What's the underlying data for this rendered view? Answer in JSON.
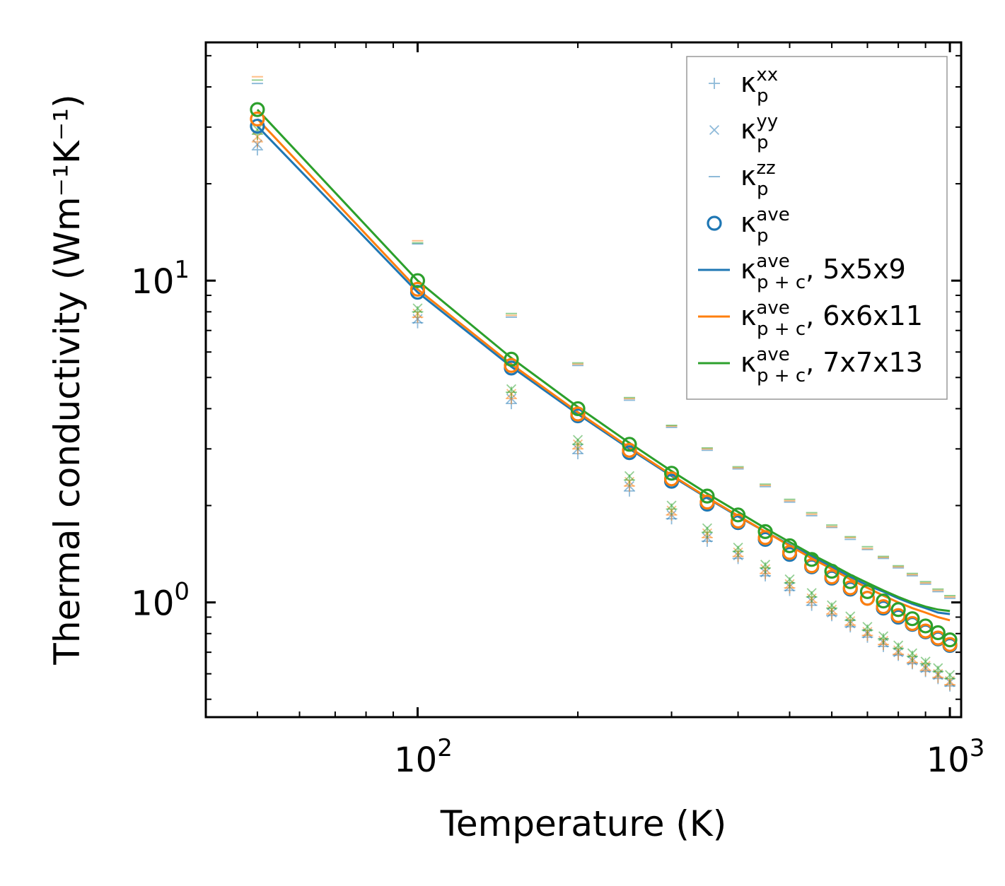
{
  "chart_data": {
    "type": "scatter",
    "title": "",
    "xlabel": "Temperature (K)",
    "ylabel": "Thermal conductivity (Wm⁻¹K⁻¹)",
    "xscale": "log",
    "yscale": "log",
    "xlim": [
      40,
      1050
    ],
    "ylim": [
      0.44,
      55
    ],
    "x_ticks": [
      {
        "base": "10",
        "exp": "2",
        "value": 100
      },
      {
        "base": "10",
        "exp": "3",
        "value": 1000
      }
    ],
    "y_ticks": [
      {
        "base": "10",
        "exp": "0",
        "value": 1
      },
      {
        "base": "10",
        "exp": "1",
        "value": 10
      }
    ],
    "legend_position": "top-right",
    "legend": [
      {
        "symbol": "plus",
        "color": "#1f77b4",
        "alpha": 0.5,
        "main": "κ",
        "sub": "p",
        "sup": "xx",
        "suffix": ""
      },
      {
        "symbol": "cross",
        "color": "#1f77b4",
        "alpha": 0.5,
        "main": "κ",
        "sub": "p",
        "sup": "yy",
        "suffix": ""
      },
      {
        "symbol": "hline",
        "color": "#1f77b4",
        "alpha": 0.5,
        "main": "κ",
        "sub": "p",
        "sup": "zz",
        "suffix": ""
      },
      {
        "symbol": "circle",
        "color": "#1f77b4",
        "alpha": 1,
        "main": "κ",
        "sub": "p",
        "sup": "ave",
        "suffix": ""
      },
      {
        "symbol": "line",
        "color": "#1f77b4",
        "alpha": 1,
        "main": "κ",
        "sub": "p + c",
        "sup": "ave",
        "suffix": ", 5x5x9"
      },
      {
        "symbol": "line",
        "color": "#ff7f0e",
        "alpha": 1,
        "main": "κ",
        "sub": "p + c",
        "sup": "ave",
        "suffix": ", 6x6x11"
      },
      {
        "symbol": "line",
        "color": "#2ca02c",
        "alpha": 1,
        "main": "κ",
        "sub": "p + c",
        "sup": "ave",
        "suffix": ", 7x7x13"
      }
    ],
    "x": [
      50,
      100,
      150,
      200,
      250,
      300,
      350,
      400,
      450,
      500,
      550,
      600,
      650,
      700,
      750,
      800,
      850,
      900,
      950,
      1000
    ],
    "series": [
      {
        "name": "5x5x9",
        "color": "#1f77b4",
        "kxx": [
          25.5,
          7.4,
          4.15,
          2.9,
          2.22,
          1.82,
          1.55,
          1.37,
          1.21,
          1.09,
          0.98,
          0.91,
          0.84,
          0.78,
          0.73,
          0.685,
          0.645,
          0.61,
          0.58,
          0.55
        ],
        "kyy": [
          26.5,
          7.6,
          4.3,
          3.0,
          2.3,
          1.87,
          1.59,
          1.4,
          1.24,
          1.12,
          1.01,
          0.93,
          0.86,
          0.8,
          0.75,
          0.7,
          0.66,
          0.625,
          0.595,
          0.565
        ],
        "kzz": [
          41,
          13.0,
          7.7,
          5.45,
          4.25,
          3.5,
          2.97,
          2.6,
          2.29,
          2.05,
          1.86,
          1.71,
          1.57,
          1.46,
          1.37,
          1.28,
          1.21,
          1.14,
          1.08,
          1.03
        ],
        "kave": [
          30.2,
          9.2,
          5.35,
          3.8,
          2.92,
          2.38,
          2.02,
          1.77,
          1.57,
          1.41,
          1.29,
          1.19,
          1.1,
          1.03,
          0.96,
          0.9,
          0.855,
          0.81,
          0.77,
          0.735
        ],
        "kpc": [
          30.2,
          9.2,
          5.4,
          3.85,
          3.0,
          2.47,
          2.11,
          1.85,
          1.66,
          1.51,
          1.39,
          1.29,
          1.2,
          1.13,
          1.08,
          1.03,
          0.99,
          0.96,
          0.93,
          0.92
        ]
      },
      {
        "name": "6x6x11",
        "color": "#ff7f0e",
        "kxx": [
          27.0,
          7.7,
          4.3,
          3.0,
          2.3,
          1.87,
          1.59,
          1.39,
          1.23,
          1.11,
          1.0,
          0.92,
          0.85,
          0.79,
          0.74,
          0.69,
          0.65,
          0.615,
          0.585,
          0.555
        ],
        "kyy": [
          28.0,
          7.9,
          4.45,
          3.1,
          2.37,
          1.93,
          1.64,
          1.43,
          1.27,
          1.14,
          1.03,
          0.95,
          0.875,
          0.81,
          0.76,
          0.71,
          0.67,
          0.635,
          0.6,
          0.57
        ],
        "kzz": [
          43,
          13.3,
          7.8,
          5.5,
          4.3,
          3.53,
          3.0,
          2.62,
          2.31,
          2.07,
          1.88,
          1.72,
          1.59,
          1.47,
          1.38,
          1.29,
          1.22,
          1.15,
          1.09,
          1.04
        ],
        "kave": [
          31.8,
          9.4,
          5.45,
          3.85,
          2.97,
          2.42,
          2.05,
          1.79,
          1.59,
          1.43,
          1.3,
          1.2,
          1.11,
          1.03,
          0.97,
          0.91,
          0.86,
          0.815,
          0.775,
          0.74
        ],
        "kpc": [
          31.8,
          9.4,
          5.5,
          3.9,
          3.03,
          2.49,
          2.12,
          1.86,
          1.66,
          1.5,
          1.37,
          1.27,
          1.18,
          1.11,
          1.05,
          1.0,
          0.96,
          0.93,
          0.9,
          0.88
        ]
      },
      {
        "name": "7x7x13",
        "color": "#2ca02c",
        "kxx": [
          28.5,
          8.0,
          4.5,
          3.1,
          2.4,
          1.95,
          1.65,
          1.44,
          1.28,
          1.15,
          1.04,
          0.96,
          0.88,
          0.82,
          0.77,
          0.72,
          0.68,
          0.645,
          0.61,
          0.58
        ],
        "kyy": [
          29.5,
          8.2,
          4.6,
          3.2,
          2.47,
          2.0,
          1.7,
          1.48,
          1.31,
          1.18,
          1.07,
          0.98,
          0.905,
          0.84,
          0.785,
          0.735,
          0.695,
          0.655,
          0.625,
          0.595
        ],
        "kzz": [
          42,
          13.1,
          7.9,
          5.55,
          4.33,
          3.55,
          3.02,
          2.64,
          2.33,
          2.09,
          1.9,
          1.74,
          1.6,
          1.49,
          1.39,
          1.3,
          1.23,
          1.16,
          1.1,
          1.05
        ],
        "kave": [
          34.0,
          10.0,
          5.7,
          4.0,
          3.1,
          2.52,
          2.14,
          1.87,
          1.66,
          1.5,
          1.36,
          1.25,
          1.16,
          1.08,
          1.01,
          0.95,
          0.89,
          0.845,
          0.805,
          0.765
        ],
        "kpc": [
          34.0,
          10.0,
          5.75,
          4.05,
          3.13,
          2.56,
          2.18,
          1.91,
          1.7,
          1.54,
          1.41,
          1.31,
          1.22,
          1.15,
          1.09,
          1.04,
          1.0,
          0.97,
          0.95,
          0.94
        ]
      }
    ]
  }
}
